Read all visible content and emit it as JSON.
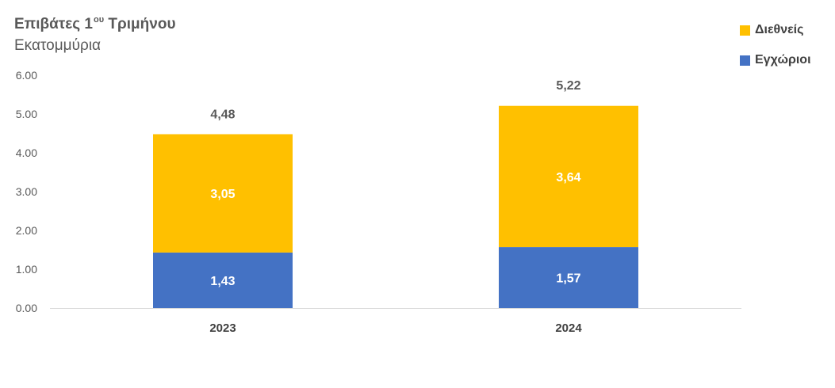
{
  "chart_data": {
    "type": "bar",
    "stacked": true,
    "title": "Επιβάτες 1",
    "title_superscript": "ου",
    "title_suffix": " Τριμήνου",
    "subtitle": "Εκατομμύρια",
    "categories": [
      "2023",
      "2024"
    ],
    "series": [
      {
        "name": "Εγχώριοι",
        "values": [
          1.43,
          1.57
        ],
        "labels": [
          "1,43",
          "1,57"
        ],
        "color": "#4472C4"
      },
      {
        "name": "Διεθνείς",
        "values": [
          3.05,
          3.64
        ],
        "labels": [
          "3,05",
          "3,64"
        ],
        "color": "#FFC000"
      }
    ],
    "totals": [
      4.48,
      5.22
    ],
    "total_labels": [
      "4,48",
      "5,22"
    ],
    "ylim": [
      0,
      6
    ],
    "yticks": [
      "0.00",
      "1.00",
      "2.00",
      "3.00",
      "4.00",
      "5.00",
      "6.00"
    ],
    "grid": false,
    "legend_position": "top-right",
    "legend_order": [
      "Διεθνείς",
      "Εγχώριοι"
    ]
  }
}
